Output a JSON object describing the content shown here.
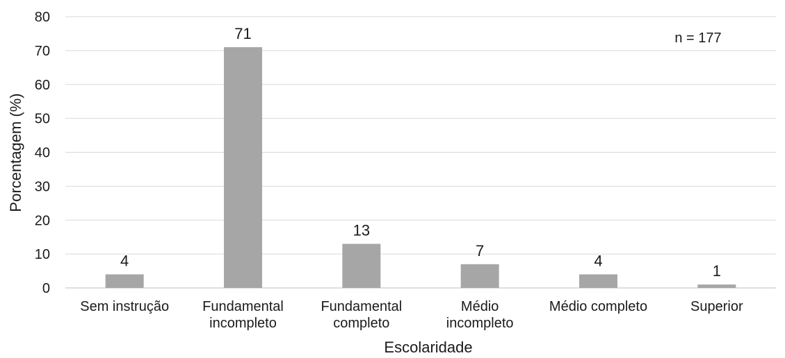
{
  "chart_data": {
    "type": "bar",
    "categories": [
      [
        "Sem instrução"
      ],
      [
        "Fundamental",
        "incompleto"
      ],
      [
        "Fundamental",
        "completo"
      ],
      [
        "Médio",
        "incompleto"
      ],
      [
        "Médio completo"
      ],
      [
        "Superior"
      ]
    ],
    "values": [
      4,
      71,
      13,
      7,
      4,
      1
    ],
    "data_labels": [
      "4",
      "71",
      "13",
      "7",
      "4",
      "1"
    ],
    "xlabel": "Escolaridade",
    "ylabel": "Porcentagem (%)",
    "ylim": [
      0,
      80
    ],
    "yticks": [
      0,
      10,
      20,
      30,
      40,
      50,
      60,
      70,
      80
    ],
    "grid": true,
    "annotation": "n = 177",
    "colors": {
      "bar": "#a6a6a6",
      "grid": "#d9d9d9",
      "axis": "#bfbfbf"
    }
  }
}
